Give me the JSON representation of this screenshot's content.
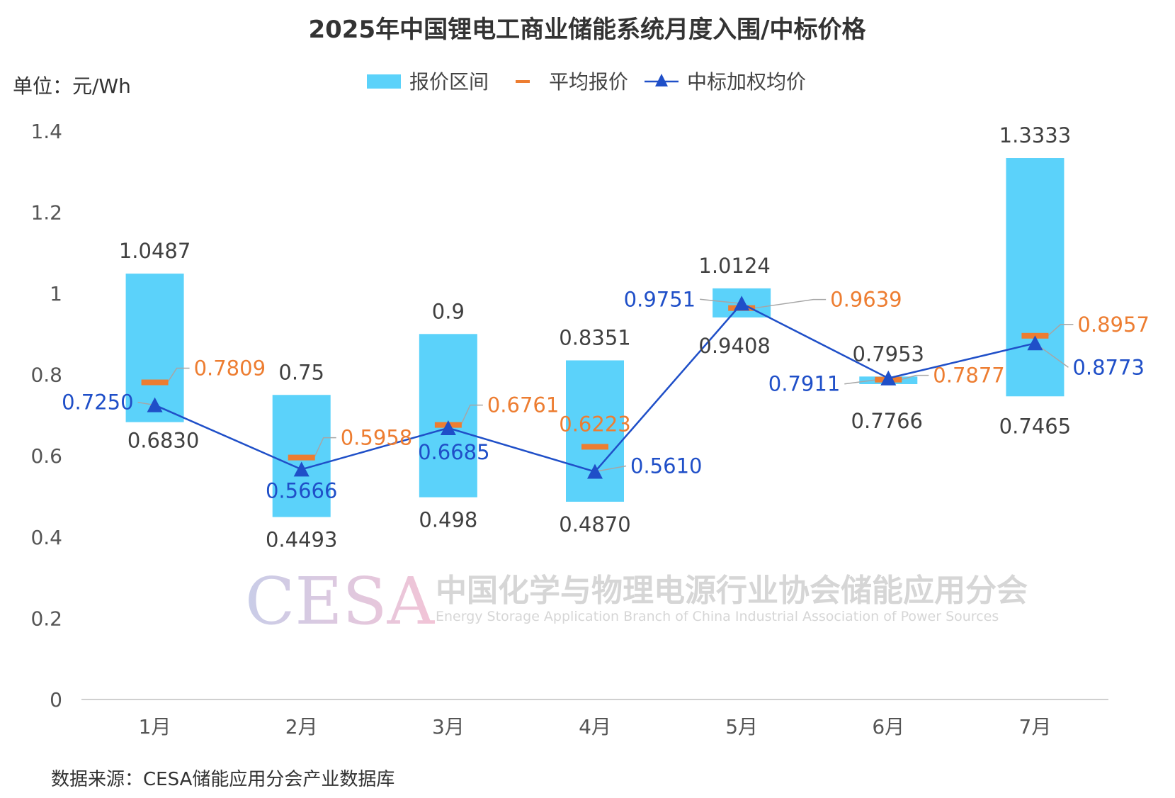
{
  "chart_data": {
    "type": "bar",
    "title": "2025年中国锂电工商业储能系统月度入围/中标价格",
    "unit_label": "单位：元/Wh",
    "source": "数据来源：CESA储能应用分会产业数据库",
    "categories": [
      "1月",
      "2月",
      "3月",
      "4月",
      "5月",
      "6月",
      "7月"
    ],
    "ylim": [
      0,
      1.4
    ],
    "yticks": [
      "0",
      "0.2",
      "0.4",
      "0.6",
      "0.8",
      "1",
      "1.2",
      "1.4"
    ],
    "grid": false,
    "legend_position": "top-center",
    "legend": {
      "range": "报价区间",
      "avg": "平均报价",
      "win": "中标加权均价"
    },
    "series": [
      {
        "name": "报价区间",
        "kind": "floating-bar",
        "high": [
          1.0487,
          0.75,
          0.9,
          0.8351,
          1.0124,
          0.7953,
          1.3333
        ],
        "low": [
          0.683,
          0.4493,
          0.498,
          0.487,
          0.9408,
          0.7766,
          0.7465
        ],
        "high_labels": [
          "1.0487",
          "0.75",
          "0.9",
          "0.8351",
          "1.0124",
          "0.7953",
          "1.3333"
        ],
        "low_labels": [
          "0.6830",
          "0.4493",
          "0.498",
          "0.4870",
          "0.9408",
          "0.7766",
          "0.7465"
        ]
      },
      {
        "name": "平均报价",
        "kind": "marker-dash",
        "values": [
          0.7809,
          0.5958,
          0.6761,
          0.6223,
          0.9639,
          0.7877,
          0.8957
        ],
        "labels": [
          "0.7809",
          "0.5958",
          "0.6761",
          "0.6223",
          "0.9639",
          "0.7877",
          "0.8957"
        ]
      },
      {
        "name": "中标加权均价",
        "kind": "line-triangle",
        "values": [
          0.725,
          0.5666,
          0.6685,
          0.561,
          0.9751,
          0.7911,
          0.8773
        ],
        "labels": [
          "0.7250",
          "0.5666",
          "0.6685",
          "0.5610",
          "0.9751",
          "0.7911",
          "0.8773"
        ]
      }
    ]
  },
  "watermark": {
    "logo": "CESA",
    "cn": "中国化学与物理电源行业协会储能应用分会",
    "en": "Energy Storage Application Branch of China Industrial Association of Power Sources"
  },
  "colors": {
    "range": "#5BD2FA",
    "avg": "#ED7D31",
    "win": "#1F4FC8",
    "axis": "#d0d0d0"
  }
}
